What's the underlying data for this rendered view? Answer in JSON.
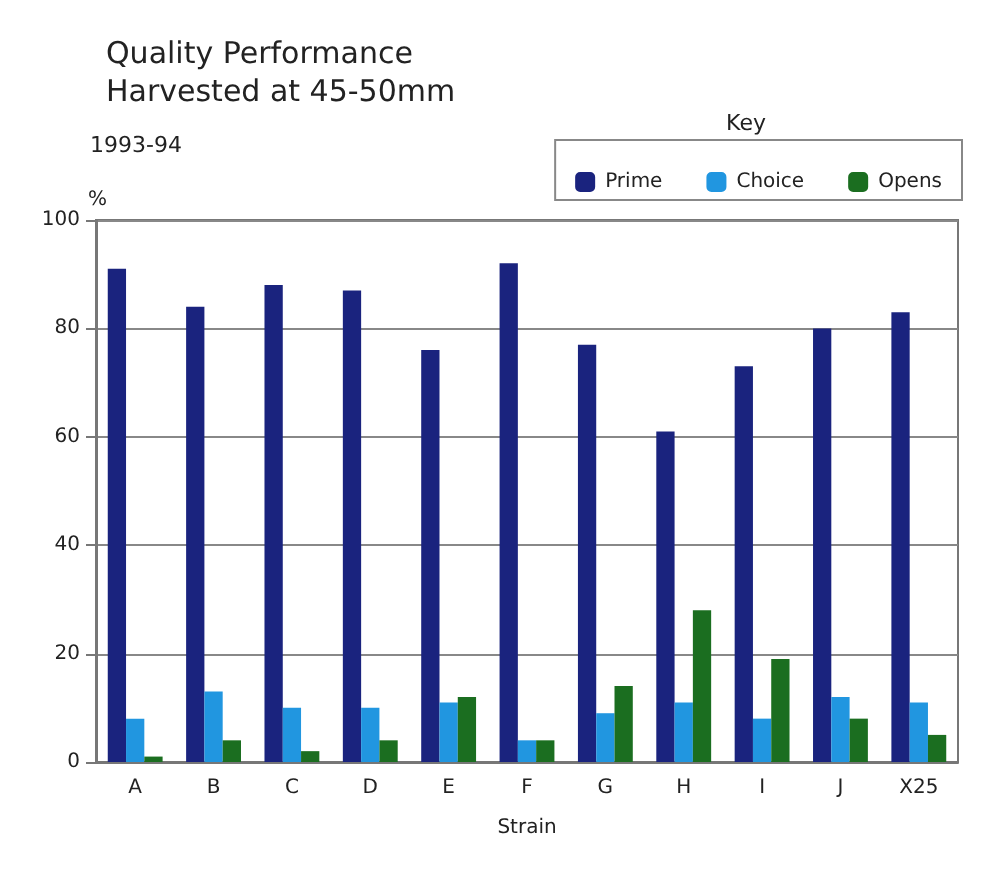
{
  "chart_data": {
    "type": "bar",
    "title": "Quality Performance\nHarvested at 45-50mm",
    "subtitle": "1993-94",
    "xlabel": "Strain",
    "ylabel": "%",
    "legend_title": "Key",
    "categories": [
      "A",
      "B",
      "C",
      "D",
      "E",
      "F",
      "G",
      "H",
      "I",
      "J",
      "X25"
    ],
    "series": [
      {
        "name": "Prime",
        "color": "#1a237e",
        "values": [
          91,
          84,
          88,
          87,
          76,
          92,
          77,
          61,
          73,
          80,
          83
        ]
      },
      {
        "name": "Choice",
        "color": "#2196e0",
        "values": [
          8,
          13,
          10,
          10,
          11,
          4,
          9,
          11,
          8,
          12,
          11
        ]
      },
      {
        "name": "Opens",
        "color": "#1b6e20",
        "values": [
          1,
          4,
          2,
          4,
          12,
          4,
          14,
          28,
          19,
          8,
          5
        ]
      }
    ],
    "ylim": [
      0,
      100
    ],
    "yticks": [
      0,
      20,
      40,
      60,
      80,
      100
    ],
    "grid": "y",
    "legend": "top right"
  }
}
